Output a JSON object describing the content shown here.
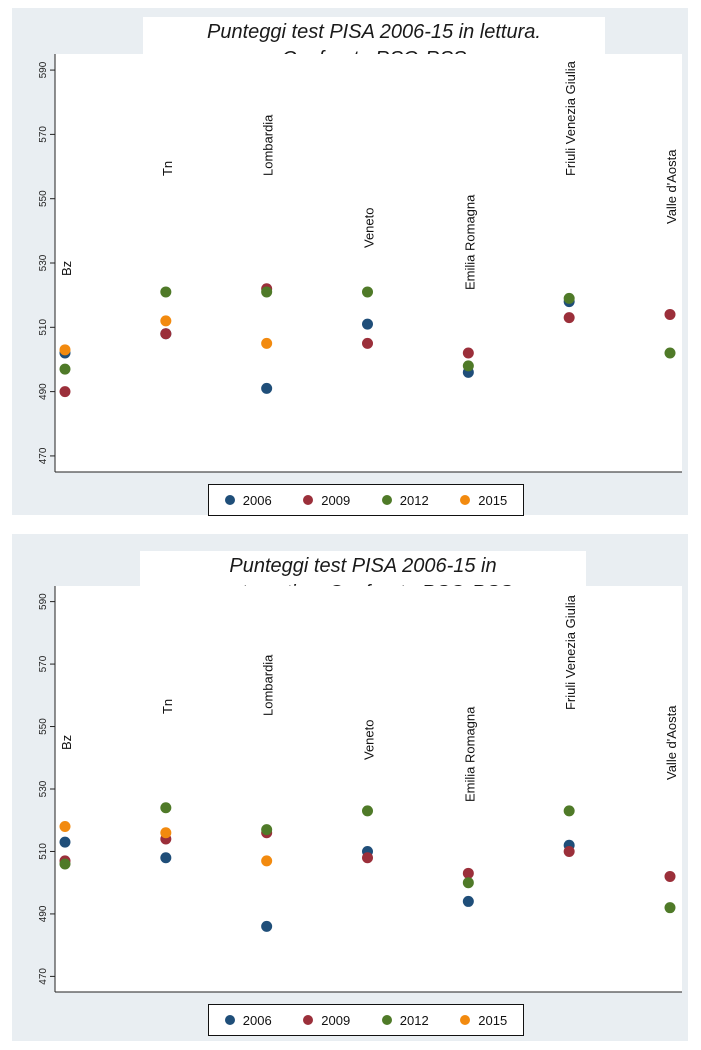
{
  "chart_data": [
    {
      "type": "scatter",
      "title_lines": [
        "Punteggi test PISA 2006-15 in lettura.",
        "Confronto RSO-RSS"
      ],
      "ylim": [
        465,
        595
      ],
      "yticks": [
        470,
        490,
        510,
        530,
        550,
        570,
        590
      ],
      "categories": [
        "Bz",
        "Tn",
        "Lombardia",
        "Veneto",
        "Emilia Romagna",
        "Friuli Venezia Giulia",
        "Valle d'Aosta"
      ],
      "series": [
        {
          "name": "2006",
          "color": "#1f4e79",
          "values": [
            502,
            508,
            491,
            511,
            496,
            518,
            null
          ]
        },
        {
          "name": "2009",
          "color": "#9b2f3a",
          "values": [
            490,
            508,
            522,
            505,
            502,
            513,
            514
          ]
        },
        {
          "name": "2012",
          "color": "#4f7a28",
          "values": [
            497,
            521,
            521,
            521,
            498,
            519,
            502
          ]
        },
        {
          "name": "2015",
          "color": "#f28a0f",
          "values": [
            503,
            512,
            505,
            null,
            null,
            null,
            null
          ]
        }
      ],
      "legend_position": "bottom"
    },
    {
      "type": "scatter",
      "title_lines": [
        "Punteggi test PISA 2006-15 in",
        "matematica. Confronto RSO-RSS"
      ],
      "ylim": [
        465,
        595
      ],
      "yticks": [
        470,
        490,
        510,
        530,
        550,
        570,
        590
      ],
      "categories": [
        "Bz",
        "Tn",
        "Lombardia",
        "Veneto",
        "Emilia Romagna",
        "Friuli Venezia Giulia",
        "Valle d'Aosta"
      ],
      "series": [
        {
          "name": "2006",
          "color": "#1f4e79",
          "values": [
            513,
            508,
            486,
            510,
            494,
            512,
            null
          ]
        },
        {
          "name": "2009",
          "color": "#9b2f3a",
          "values": [
            507,
            514,
            516,
            508,
            503,
            510,
            502
          ]
        },
        {
          "name": "2012",
          "color": "#4f7a28",
          "values": [
            506,
            524,
            517,
            523,
            500,
            523,
            492
          ]
        },
        {
          "name": "2015",
          "color": "#f28a0f",
          "values": [
            518,
            516,
            507,
            null,
            null,
            null,
            null
          ]
        }
      ],
      "legend_position": "bottom"
    }
  ]
}
